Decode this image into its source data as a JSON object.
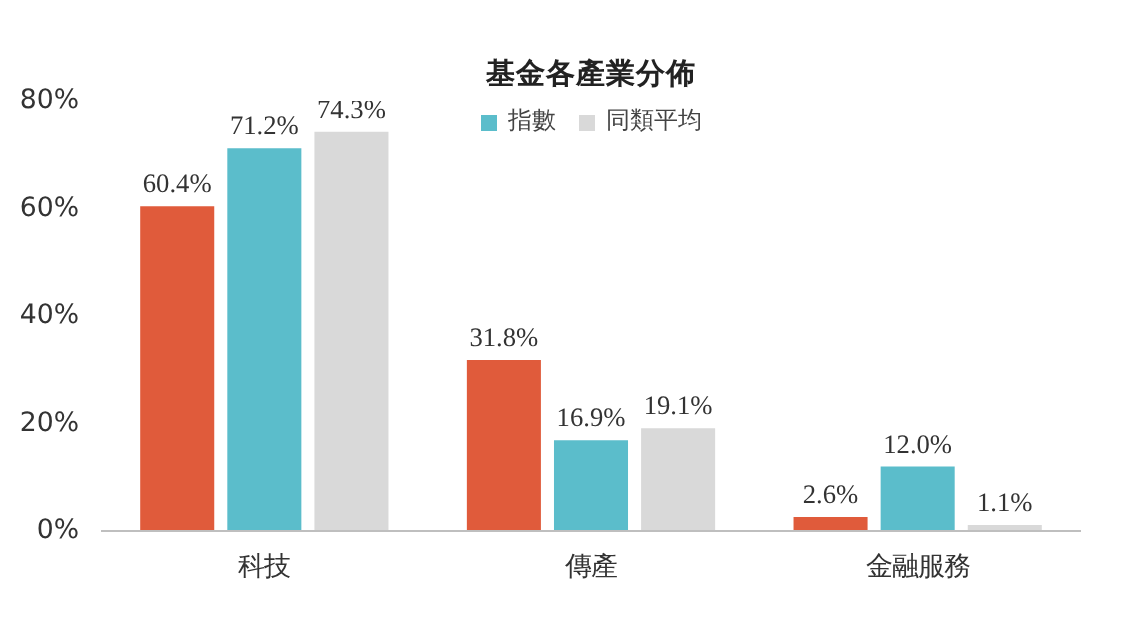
{
  "chart_data": {
    "type": "bar",
    "title": "基金各產業分佈",
    "categories": [
      "科技",
      "傳產",
      "金融服務"
    ],
    "series": [
      {
        "color": "#e05b3b",
        "values": [
          60.4,
          31.8,
          2.6
        ],
        "value_labels": [
          "60.4%",
          "31.8%",
          "2.6%"
        ]
      },
      {
        "name": "指數",
        "color": "#5bbdcb",
        "values": [
          71.2,
          16.9,
          12.0
        ],
        "value_labels": [
          "71.2%",
          "16.9%",
          "12.0%"
        ]
      },
      {
        "name": "同類平均",
        "color": "#d9d9d9",
        "values": [
          74.3,
          19.1,
          1.1
        ],
        "value_labels": [
          "74.3%",
          "19.1%",
          "1.1%"
        ]
      }
    ],
    "ylim": [
      0,
      80
    ],
    "yticks": [
      {
        "value": 0,
        "label": "0%"
      },
      {
        "value": 20,
        "label": "20%"
      },
      {
        "value": 40,
        "label": "40%"
      },
      {
        "value": 60,
        "label": "60%"
      },
      {
        "value": 80,
        "label": "80%"
      }
    ],
    "grid": false,
    "legend": "top"
  }
}
